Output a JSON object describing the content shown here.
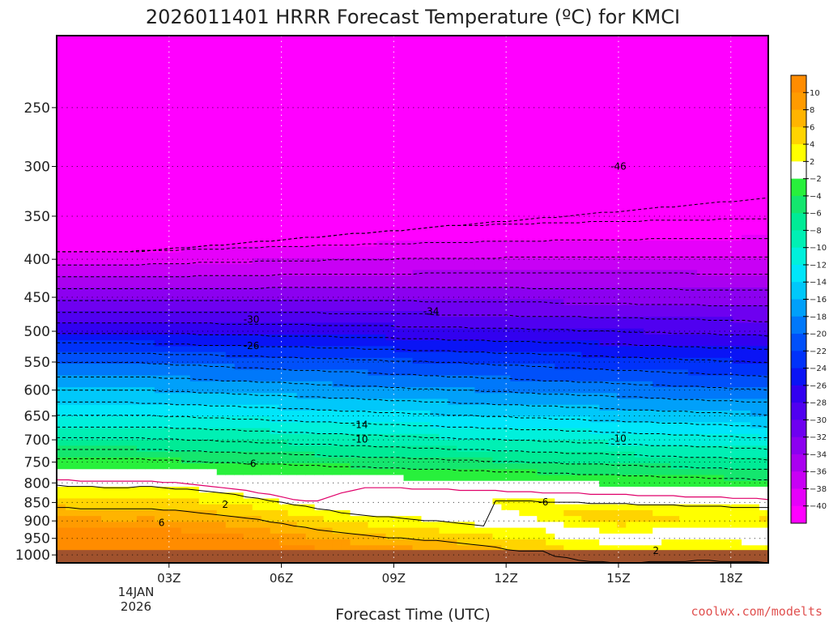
{
  "chart_data": {
    "type": "heatmap",
    "title": "2026011401 HRRR Forecast Temperature (ºC) for KMCI",
    "xlabel": "Forecast Time (UTC)",
    "ylabel": "",
    "x_ticks": [
      "03Z",
      "06Z",
      "09Z",
      "12Z",
      "15Z",
      "18Z"
    ],
    "x_tick_hours": [
      3,
      6,
      9,
      12,
      15,
      18
    ],
    "x_date_label": [
      "14JAN",
      "2026"
    ],
    "xlim_hours": [
      0,
      19
    ],
    "y_ticks": [
      250,
      300,
      350,
      400,
      450,
      500,
      550,
      600,
      650,
      700,
      750,
      800,
      850,
      900,
      950,
      1000
    ],
    "ylim_hpa": [
      1025,
      200
    ],
    "y_scale": "log-pressure",
    "colorbar_levels": [
      10,
      8,
      6,
      4,
      2,
      -2,
      -4,
      -6,
      -8,
      -10,
      -12,
      -14,
      -16,
      -18,
      -20,
      -22,
      -24,
      -26,
      -28,
      -30,
      -32,
      -34,
      -36,
      -38,
      -40
    ],
    "contour_labels": [
      {
        "text": "-46",
        "hour": 15.0,
        "p": 300
      },
      {
        "text": "-34",
        "hour": 10.0,
        "p": 470
      },
      {
        "text": "-30",
        "hour": 5.2,
        "p": 482
      },
      {
        "text": "-26",
        "hour": 5.2,
        "p": 523
      },
      {
        "text": "-14",
        "hour": 8.1,
        "p": 668
      },
      {
        "text": "-10",
        "hour": 8.1,
        "p": 699
      },
      {
        "text": "-10",
        "hour": 15.0,
        "p": 697
      },
      {
        "text": "-6",
        "hour": 5.2,
        "p": 754
      },
      {
        "text": "-6",
        "hour": 13.0,
        "p": 849
      },
      {
        "text": "2",
        "hour": 4.5,
        "p": 855
      },
      {
        "text": "6",
        "hour": 2.8,
        "p": 905
      },
      {
        "text": "2",
        "hour": 16.0,
        "p": 987
      }
    ],
    "credit": "coolwx.com/modelts"
  },
  "colors": {
    "ground": "#a0522d",
    "background": "#ffffff",
    "frame": "#000000",
    "credit": "#e0504f"
  }
}
